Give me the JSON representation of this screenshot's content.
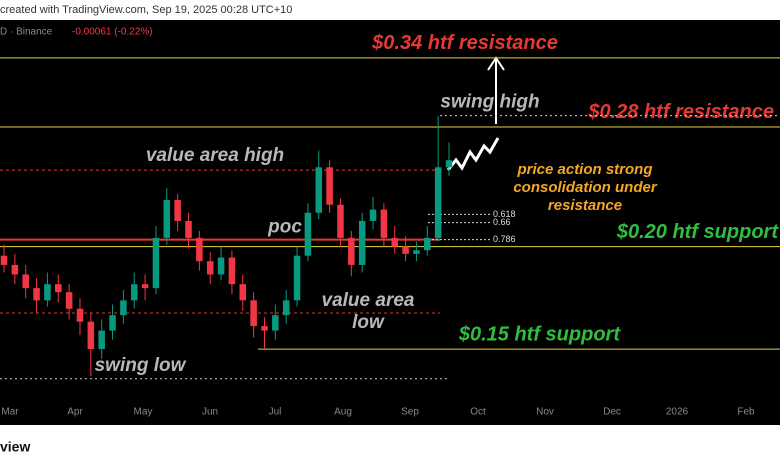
{
  "header": {
    "credit": "created with TradingView.com, Sep 19, 2025 00:28 UTC+10",
    "symbol": "D · Binance",
    "change": "-0.00061 (-0.22%)",
    "brand": "view"
  },
  "chart_data": {
    "type": "candlestick",
    "log_scale": true,
    "ylim": [
      0.13,
      0.4
    ],
    "up_color": "#089981",
    "down_color": "#f23645",
    "x_labels": [
      "Mar",
      "Apr",
      "May",
      "Jun",
      "Jul",
      "Aug",
      "Sep",
      "Oct",
      "Nov",
      "Dec",
      "2026",
      "Feb"
    ],
    "open": [
      0.195,
      0.19,
      0.185,
      0.178,
      0.172,
      0.18,
      0.176,
      0.168,
      0.162,
      0.15,
      0.158,
      0.165,
      0.172,
      0.18,
      0.178,
      0.205,
      0.228,
      0.215,
      0.205,
      0.192,
      0.185,
      0.194,
      0.18,
      0.172,
      0.16,
      0.158,
      0.165,
      0.172,
      0.195,
      0.22,
      0.25,
      0.225,
      0.205,
      0.19,
      0.215,
      0.222,
      0.205,
      0.2,
      0.196,
      0.198,
      0.205,
      0.25
    ],
    "high": [
      0.201,
      0.196,
      0.19,
      0.183,
      0.186,
      0.185,
      0.18,
      0.173,
      0.166,
      0.163,
      0.17,
      0.177,
      0.186,
      0.185,
      0.212,
      0.236,
      0.232,
      0.22,
      0.209,
      0.197,
      0.2,
      0.198,
      0.185,
      0.176,
      0.164,
      0.17,
      0.177,
      0.2,
      0.226,
      0.262,
      0.255,
      0.229,
      0.209,
      0.22,
      0.23,
      0.226,
      0.212,
      0.206,
      0.203,
      0.212,
      0.289,
      0.268
    ],
    "low": [
      0.186,
      0.18,
      0.173,
      0.166,
      0.169,
      0.171,
      0.163,
      0.156,
      0.139,
      0.146,
      0.154,
      0.161,
      0.168,
      0.172,
      0.175,
      0.201,
      0.209,
      0.199,
      0.187,
      0.18,
      0.182,
      0.175,
      0.167,
      0.155,
      0.15,
      0.154,
      0.161,
      0.169,
      0.192,
      0.216,
      0.22,
      0.2,
      0.184,
      0.186,
      0.21,
      0.2,
      0.196,
      0.192,
      0.192,
      0.195,
      0.203,
      0.244
    ],
    "close": [
      0.19,
      0.185,
      0.178,
      0.172,
      0.18,
      0.176,
      0.168,
      0.162,
      0.15,
      0.158,
      0.165,
      0.172,
      0.18,
      0.178,
      0.205,
      0.228,
      0.215,
      0.205,
      0.192,
      0.185,
      0.194,
      0.18,
      0.172,
      0.16,
      0.158,
      0.165,
      0.172,
      0.195,
      0.22,
      0.25,
      0.225,
      0.205,
      0.19,
      0.215,
      0.222,
      0.205,
      0.2,
      0.196,
      0.198,
      0.205,
      0.25,
      0.255
    ],
    "levels": [
      {
        "label": "$0.34 htf resistance",
        "value": 0.34,
        "color": "#e53935"
      },
      {
        "label": "$0.28 htf resistance",
        "value": 0.28,
        "color": "#e53935"
      },
      {
        "label": "$0.20 htf support",
        "value": 0.2,
        "color": "#2fbf3f"
      },
      {
        "label": "$0.15 htf support",
        "value": 0.15,
        "color": "#2fbf3f"
      }
    ],
    "profile": [
      {
        "label": "value area high",
        "value": 0.248
      },
      {
        "label": "poc",
        "value": 0.204
      },
      {
        "label": "value area low",
        "value": 0.166
      }
    ],
    "swings": [
      {
        "label": "swing high",
        "value": 0.289
      },
      {
        "label": "swing low",
        "value": 0.138
      }
    ],
    "fib": [
      {
        "ratio": 0.618,
        "price": 0.219
      },
      {
        "ratio": 0.66,
        "price": 0.214
      },
      {
        "ratio": 0.786,
        "price": 0.204
      }
    ],
    "annotation": [
      "price action strong",
      "consolidation under",
      "resistance"
    ]
  }
}
